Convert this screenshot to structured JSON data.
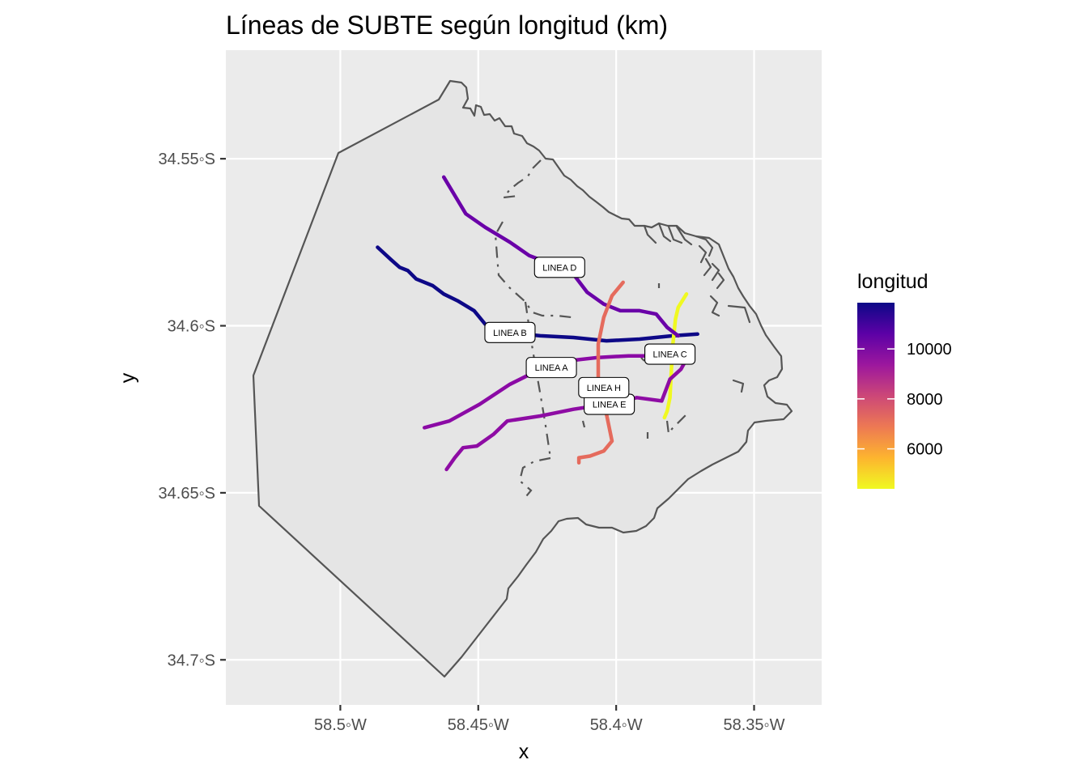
{
  "title": "Líneas de SUBTE según longitud (km)",
  "axes": {
    "xlabel": "x",
    "ylabel": "y",
    "x_ticks": [
      {
        "value": -58.5,
        "label": "58.5◦W"
      },
      {
        "value": -58.45,
        "label": "58.45◦W"
      },
      {
        "value": -58.4,
        "label": "58.4◦W"
      },
      {
        "value": -58.35,
        "label": "58.35◦W"
      }
    ],
    "y_ticks": [
      {
        "value": -34.55,
        "label": "34.55◦S"
      },
      {
        "value": -34.6,
        "label": "34.6◦S"
      },
      {
        "value": -34.65,
        "label": "34.65◦S"
      },
      {
        "value": -34.7,
        "label": "34.7◦S"
      }
    ],
    "xlim": [
      -58.5415,
      -58.3255
    ],
    "ylim": [
      -34.7135,
      -34.5175
    ]
  },
  "legend": {
    "title": "longitud",
    "ticks": [
      {
        "value": 6000,
        "label": "6000"
      },
      {
        "value": 8000,
        "label": "8000"
      },
      {
        "value": 10000,
        "label": "10000"
      }
    ],
    "range": [
      4400,
      11850
    ],
    "colors": [
      "#f0f921",
      "#fdb42f",
      "#ed7953",
      "#cc4778",
      "#9c179e",
      "#5c01a6",
      "#0d0887"
    ]
  },
  "map_data": {
    "type": "map",
    "color_variable": "longitud",
    "lines": [
      {
        "name": "LINEA A",
        "longitud": 9800,
        "color": "#8b0aa5",
        "label_at": [
          -58.4235,
          -34.6125
        ],
        "path": [
          [
            -58.4695,
            -34.6305
          ],
          [
            -58.4605,
            -34.6285
          ],
          [
            -58.4495,
            -34.6235
          ],
          [
            -58.4385,
            -34.6175
          ],
          [
            -58.4275,
            -34.613
          ],
          [
            -58.4175,
            -34.6105
          ],
          [
            -58.4065,
            -34.6095
          ],
          [
            -58.3955,
            -34.609
          ],
          [
            -58.3865,
            -34.609
          ],
          [
            -58.3785,
            -34.6085
          ]
        ]
      },
      {
        "name": "LINEA B",
        "longitud": 11800,
        "color": "#0d0887",
        "label_at": [
          -58.4385,
          -34.602
        ],
        "path": [
          [
            -58.4865,
            -34.5765
          ],
          [
            -58.4815,
            -34.5803
          ],
          [
            -58.4785,
            -34.5825
          ],
          [
            -58.4755,
            -34.5835
          ],
          [
            -58.4725,
            -34.586
          ],
          [
            -58.4665,
            -34.588
          ],
          [
            -58.4625,
            -34.5905
          ],
          [
            -58.4575,
            -34.5925
          ],
          [
            -58.4515,
            -34.5955
          ],
          [
            -58.4475,
            -34.5995
          ],
          [
            -58.4395,
            -34.602
          ],
          [
            -58.4275,
            -34.603
          ],
          [
            -58.4155,
            -34.6035
          ],
          [
            -58.4035,
            -34.6045
          ],
          [
            -58.3915,
            -34.604
          ],
          [
            -58.3795,
            -34.603
          ],
          [
            -58.3705,
            -34.6025
          ]
        ]
      },
      {
        "name": "LINEA C",
        "longitud": 4400,
        "color": "#f0f921",
        "label_at": [
          -58.3805,
          -34.6085
        ],
        "path": [
          [
            -58.3745,
            -34.5905
          ],
          [
            -58.3775,
            -34.5945
          ],
          [
            -58.3785,
            -34.598
          ],
          [
            -58.3795,
            -34.606
          ],
          [
            -58.38,
            -34.6135
          ],
          [
            -58.3805,
            -34.6215
          ],
          [
            -58.3815,
            -34.6255
          ],
          [
            -58.3825,
            -34.6275
          ]
        ]
      },
      {
        "name": "LINEA D",
        "longitud": 10800,
        "color": "#6a00a8",
        "label_at": [
          -58.4205,
          -34.5825
        ],
        "path": [
          [
            -58.4625,
            -34.5555
          ],
          [
            -58.4545,
            -34.5665
          ],
          [
            -58.4475,
            -34.5705
          ],
          [
            -58.4385,
            -34.575
          ],
          [
            -58.4315,
            -34.579
          ],
          [
            -58.4245,
            -34.5812
          ],
          [
            -58.4165,
            -34.5835
          ],
          [
            -58.4105,
            -34.59
          ],
          [
            -58.4045,
            -34.5935
          ],
          [
            -58.3985,
            -34.5955
          ],
          [
            -58.3915,
            -34.5955
          ],
          [
            -58.3855,
            -34.5965
          ],
          [
            -58.3815,
            -34.6005
          ],
          [
            -58.3775,
            -34.603
          ]
        ]
      },
      {
        "name": "LINEA E",
        "longitud": 9700,
        "color": "#8e0ca4",
        "label_at": [
          -58.4025,
          -34.6235
        ],
        "path": [
          [
            -58.4615,
            -34.643
          ],
          [
            -58.4585,
            -34.6395
          ],
          [
            -58.4555,
            -34.6365
          ],
          [
            -58.4505,
            -34.636
          ],
          [
            -58.4445,
            -34.6325
          ],
          [
            -58.4395,
            -34.6285
          ],
          [
            -58.4275,
            -34.627
          ],
          [
            -58.4155,
            -34.625
          ],
          [
            -58.4035,
            -34.6235
          ],
          [
            -58.3925,
            -34.6215
          ],
          [
            -58.3835,
            -34.6225
          ],
          [
            -58.3805,
            -34.616
          ],
          [
            -58.3765,
            -34.613
          ],
          [
            -58.3745,
            -34.61
          ]
        ]
      },
      {
        "name": "LINEA H",
        "longitud": 7100,
        "color": "#e56b5d",
        "label_at": [
          -58.4045,
          -34.6185
        ],
        "path": [
          [
            -58.3975,
            -34.587
          ],
          [
            -58.4015,
            -34.591
          ],
          [
            -58.4045,
            -34.5975
          ],
          [
            -58.4065,
            -34.6055
          ],
          [
            -58.4065,
            -34.6155
          ],
          [
            -58.4035,
            -34.6265
          ],
          [
            -58.4015,
            -34.6345
          ],
          [
            -58.4045,
            -34.6375
          ],
          [
            -58.4095,
            -34.639
          ],
          [
            -58.4135,
            -34.6395
          ],
          [
            -58.4135,
            -34.641
          ]
        ]
      }
    ]
  }
}
